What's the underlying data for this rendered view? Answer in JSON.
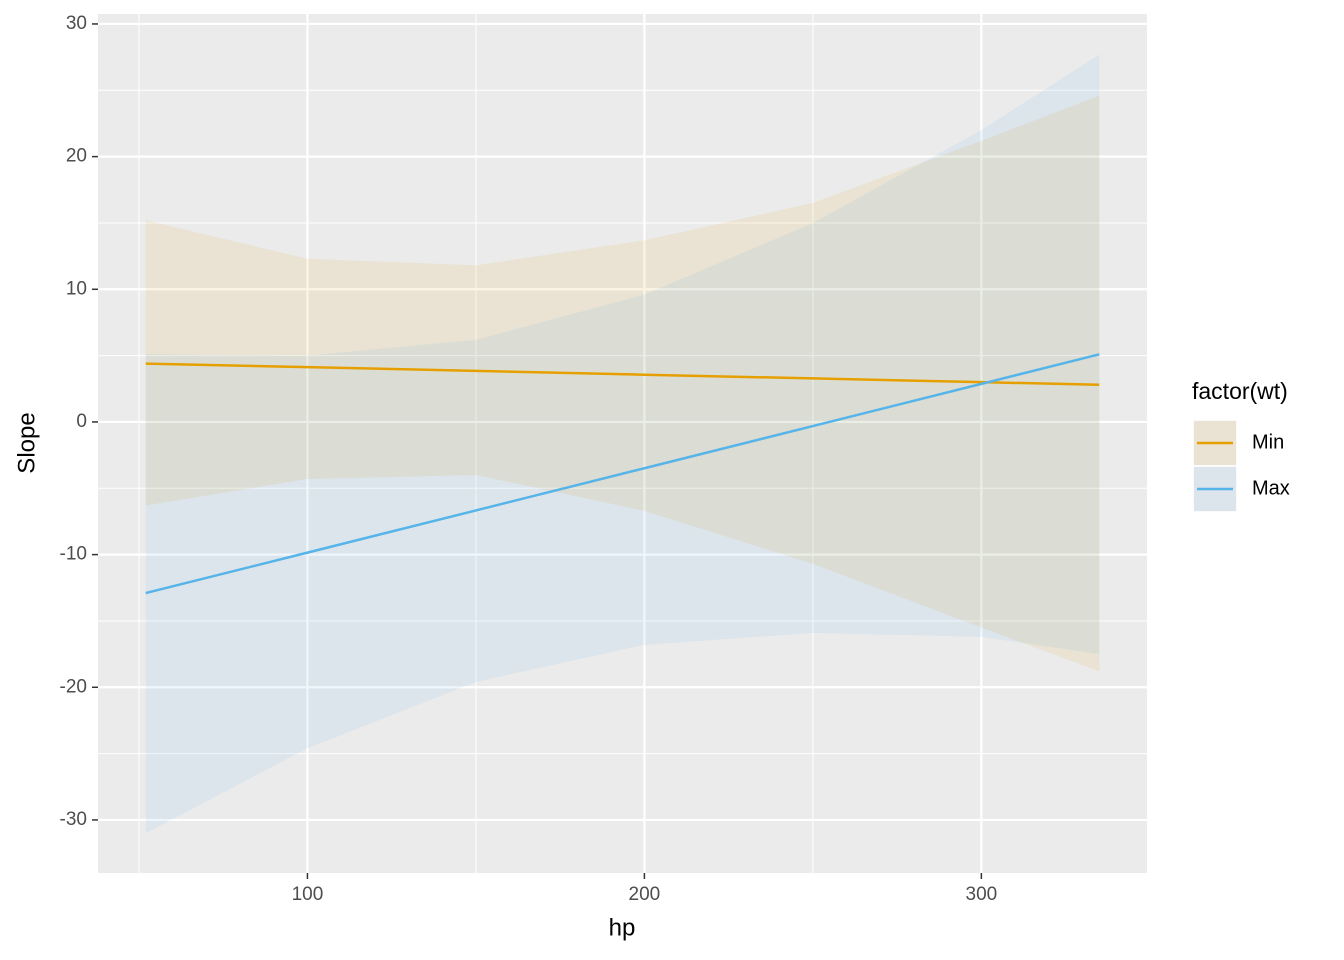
{
  "chart_data": {
    "type": "line",
    "x_label": "hp",
    "y_label": "Slope",
    "legend_title": "factor(wt)",
    "x": [
      52,
      100,
      150,
      200,
      250,
      300,
      335
    ],
    "series": [
      {
        "name": "Min",
        "color": "#E69F00",
        "values": [
          4.4,
          4.13,
          3.85,
          3.56,
          3.28,
          3.0,
          2.8
        ],
        "lower": [
          -6.3,
          -4.3,
          -4.0,
          -6.7,
          -10.7,
          -15.5,
          -18.8
        ],
        "upper": [
          15.2,
          12.3,
          11.8,
          13.7,
          16.5,
          21.2,
          24.6
        ]
      },
      {
        "name": "Max",
        "color": "#56B4E9",
        "values": [
          -12.9,
          -9.85,
          -6.67,
          -3.49,
          -0.31,
          2.87,
          5.1
        ],
        "lower": [
          -31,
          -24.6,
          -19.6,
          -16.8,
          -15.9,
          -16.2,
          -17.5
        ],
        "upper": [
          5.1,
          5.0,
          6.2,
          9.6,
          15,
          22,
          27.7
        ]
      }
    ],
    "xlim": [
      37.85,
      349.15
    ],
    "xticks": [
      100,
      200,
      300
    ],
    "xminor": [
      50,
      150,
      250
    ],
    "ylim": [
      -34,
      30.75
    ],
    "yticks": [
      -30,
      -20,
      -10,
      0,
      10,
      20,
      30
    ],
    "yminor": [
      -25,
      -15,
      -5,
      5,
      15,
      25
    ],
    "grid": true,
    "ribbon_alpha": 0.1,
    "legend_position": "right"
  }
}
